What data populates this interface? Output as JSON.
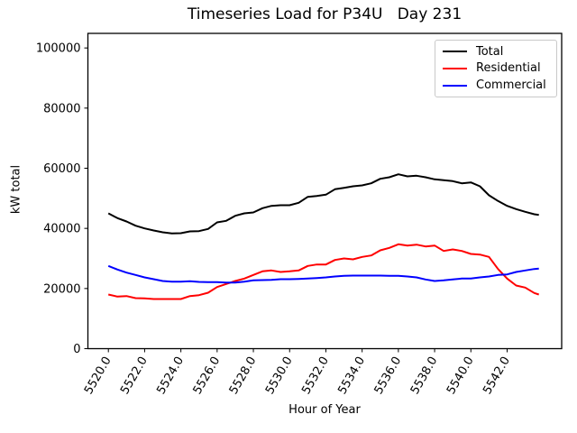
{
  "chart_data": {
    "type": "line",
    "title": "Timeseries Load for P34U   Day 231",
    "xlabel": "Hour of Year",
    "ylabel": "kW total",
    "xlim": [
      5518.87,
      5545.01
    ],
    "ylim": [
      0,
      104850
    ],
    "grid": false,
    "legend_position": "upper right",
    "xticks": {
      "values": [
        5520,
        5522,
        5524,
        5526,
        5528,
        5530,
        5532,
        5534,
        5536,
        5538,
        5540,
        5542
      ],
      "labels": [
        "5520.0",
        "5522.0",
        "5524.0",
        "5526.0",
        "5528.0",
        "5530.0",
        "5532.0",
        "5534.0",
        "5536.0",
        "5538.0",
        "5540.0",
        "5542.0"
      ]
    },
    "yticks": {
      "values": [
        0,
        20000,
        40000,
        60000,
        80000,
        100000
      ],
      "labels": [
        "0",
        "20000",
        "40000",
        "60000",
        "80000",
        "100000"
      ]
    },
    "x": [
      5520.0,
      5520.5,
      5521.0,
      5521.5,
      5522.0,
      5522.5,
      5523.0,
      5523.5,
      5524.0,
      5524.5,
      5525.0,
      5525.5,
      5526.0,
      5526.5,
      5527.0,
      5527.5,
      5528.0,
      5528.5,
      5529.0,
      5529.5,
      5530.0,
      5530.5,
      5531.0,
      5531.5,
      5532.0,
      5532.5,
      5533.0,
      5533.5,
      5534.0,
      5534.5,
      5535.0,
      5535.5,
      5536.0,
      5536.5,
      5537.0,
      5537.5,
      5538.0,
      5538.5,
      5539.0,
      5539.5,
      5540.0,
      5540.5,
      5541.0,
      5541.5,
      5542.0,
      5542.5,
      5543.0,
      5543.5,
      5543.75
    ],
    "series": [
      {
        "name": "Total",
        "color": "#000000",
        "values": [
          45000,
          43400,
          42300,
          40900,
          40000,
          39300,
          38700,
          38300,
          38400,
          39000,
          39100,
          39800,
          42000,
          42500,
          44200,
          45000,
          45300,
          46700,
          47500,
          47700,
          47700,
          48500,
          50500,
          50800,
          51200,
          53000,
          53500,
          54000,
          54300,
          55000,
          56500,
          57000,
          58000,
          57300,
          57500,
          57000,
          56300,
          56000,
          55700,
          55000,
          55300,
          54000,
          51000,
          49100,
          47500,
          46400,
          45500,
          44700,
          44500
        ]
      },
      {
        "name": "Residential",
        "color": "#ff0000",
        "values": [
          18000,
          17300,
          17500,
          16800,
          16700,
          16500,
          16500,
          16500,
          16500,
          17500,
          17800,
          18600,
          20500,
          21500,
          22500,
          23300,
          24500,
          25700,
          26000,
          25500,
          25700,
          26000,
          27500,
          28000,
          28000,
          29500,
          30000,
          29700,
          30500,
          31000,
          32700,
          33500,
          34700,
          34300,
          34600,
          34000,
          34300,
          32500,
          33000,
          32500,
          31500,
          31300,
          30500,
          26500,
          23300,
          21000,
          20300,
          18500,
          18000
        ]
      },
      {
        "name": "Commercial",
        "color": "#0000ff",
        "values": [
          27500,
          26300,
          25300,
          24500,
          23700,
          23100,
          22500,
          22300,
          22300,
          22400,
          22200,
          22100,
          22100,
          22000,
          22000,
          22300,
          22700,
          22800,
          22900,
          23100,
          23100,
          23200,
          23300,
          23500,
          23700,
          24000,
          24200,
          24300,
          24300,
          24300,
          24300,
          24200,
          24200,
          24000,
          23700,
          23000,
          22500,
          22700,
          23000,
          23300,
          23300,
          23700,
          24000,
          24500,
          24700,
          25500,
          26000,
          26500,
          26600
        ]
      }
    ]
  }
}
